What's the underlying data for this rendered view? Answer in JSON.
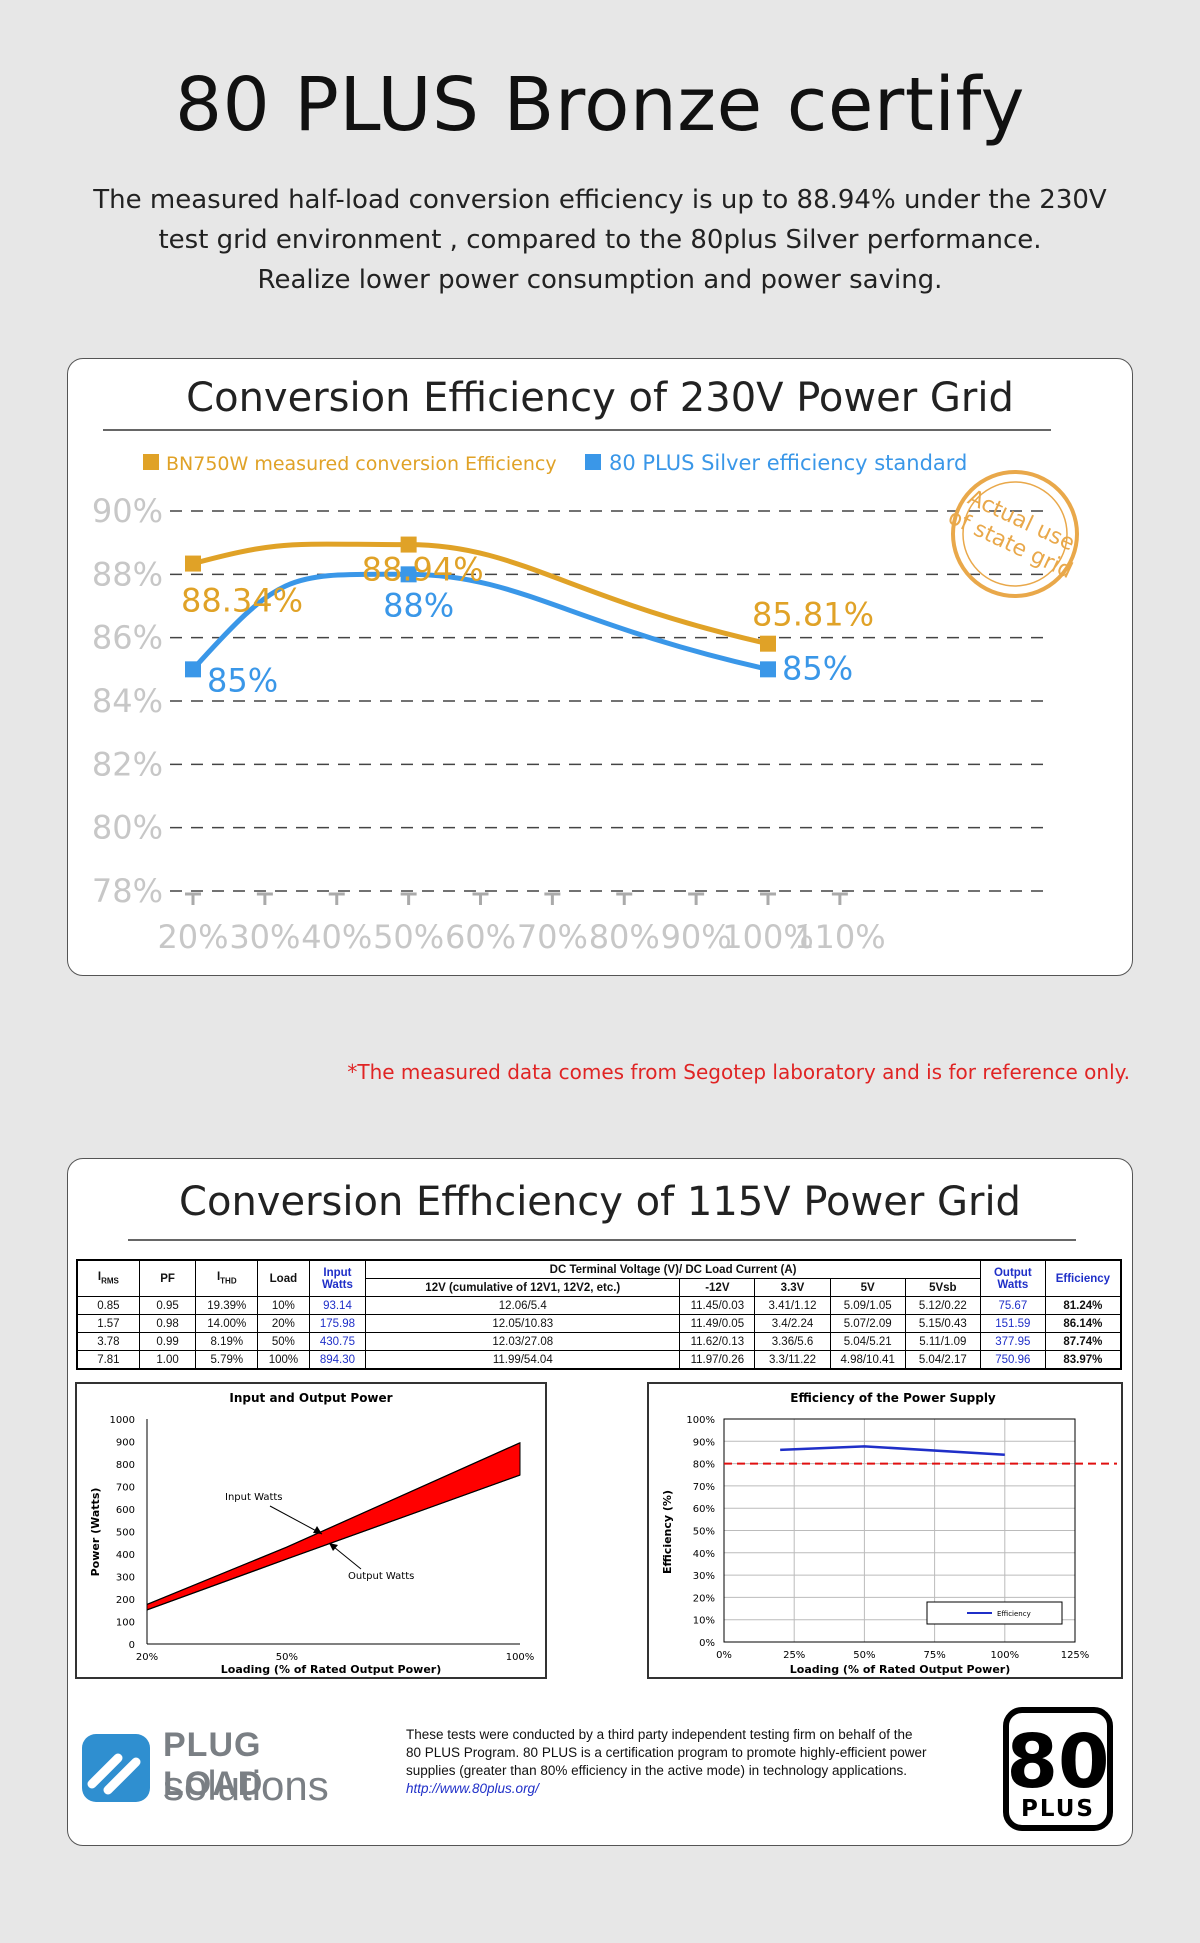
{
  "header": {
    "title": "80 PLUS Bronze certify",
    "subtitle_lines": [
      "The measured half-load conversion efficiency is up to 88.94% under the 230V",
      "test grid environment , compared to the 80plus Silver performance.",
      "Realize lower power consumption and power saving."
    ]
  },
  "chart_230v": {
    "title": "Conversion Efficiency of 230V Power Grid",
    "stamp_text": "Actual use of state grid",
    "colors": {
      "bn750w": "#e0a227",
      "silver": "#3a97e8",
      "axis": "#c7c7c7"
    }
  },
  "footnote": "*The measured data comes from Segotep laboratory and is for reference only.",
  "section_115v": {
    "title": "Conversion Effhciency of 115V Power Grid",
    "table": {
      "headers": [
        "IRMS",
        "PF",
        "ITHD",
        "Load",
        "Input Watts",
        "DC Terminal Voltage (V)/ DC Load Current (A)",
        "Output Watts",
        "Efficiency"
      ],
      "sub_headers": [
        "12V (cumulative of 12V1, 12V2, etc.)",
        "-12V",
        "3.3V",
        "5V",
        "5Vsb"
      ],
      "rows": [
        [
          "0.85",
          "0.95",
          "19.39%",
          "10%",
          "93.14",
          "12.06/5.4",
          "11.45/0.03",
          "3.41/1.12",
          "5.09/1.05",
          "5.12/0.22",
          "75.67",
          "81.24%"
        ],
        [
          "1.57",
          "0.98",
          "14.00%",
          "20%",
          "175.98",
          "12.05/10.83",
          "11.49/0.05",
          "3.4/2.24",
          "5.07/2.09",
          "5.15/0.43",
          "151.59",
          "86.14%"
        ],
        [
          "3.78",
          "0.99",
          "8.19%",
          "50%",
          "430.75",
          "12.03/27.08",
          "11.62/0.13",
          "3.36/5.6",
          "5.04/5.21",
          "5.11/1.09",
          "377.95",
          "87.74%"
        ],
        [
          "7.81",
          "1.00",
          "5.79%",
          "100%",
          "894.30",
          "11.99/54.04",
          "11.97/0.26",
          "3.3/11.22",
          "4.98/10.41",
          "5.04/2.17",
          "750.96",
          "83.97%"
        ]
      ]
    },
    "disclaimer": {
      "lines": [
        "These tests were conducted by a third party independent testing firm on behalf of the",
        "80 PLUS Program. 80 PLUS is a certification program to promote highly-efficient power",
        "supplies (greater than 80% efficiency in the active mode) in technology applications."
      ],
      "link": "http://www.80plus.org/"
    },
    "logos": {
      "plug_load_line1": "PLUG LOAD",
      "plug_load_line2": "solutions",
      "plus_number": "80",
      "plus_word": "PLUS"
    }
  },
  "chart_data": [
    {
      "type": "line",
      "title": "Conversion Efficiency of 230V Power Grid",
      "x": [
        "20%",
        "30%",
        "40%",
        "50%",
        "60%",
        "70%",
        "80%",
        "90%",
        "100%",
        "110%"
      ],
      "y_ticks": [
        "90%",
        "88%",
        "86%",
        "84%",
        "82%",
        "80%",
        "78%"
      ],
      "ylim": [
        78,
        90
      ],
      "grid": true,
      "legend_position": "top",
      "series": [
        {
          "name": "BN750W measured conversion Efficiency",
          "x": [
            20,
            50,
            100
          ],
          "values": [
            88.34,
            88.94,
            85.81
          ],
          "labels": [
            "88.34%",
            "88.94%",
            "85.81%"
          ]
        },
        {
          "name": "80 PLUS Silver efficiency standard",
          "x": [
            20,
            50,
            100
          ],
          "values": [
            85,
            88,
            85
          ],
          "labels": [
            "85%",
            "88%",
            "85%"
          ]
        }
      ]
    },
    {
      "type": "area",
      "title": "Input and Output Power",
      "xlabel": "Loading (% of Rated Output Power)",
      "ylabel": "Power (Watts)",
      "x_ticks": [
        "20%",
        "50%",
        "100%"
      ],
      "y_ticks": [
        "0",
        "100",
        "200",
        "300",
        "400",
        "500",
        "600",
        "700",
        "800",
        "900",
        "1000"
      ],
      "ylim": [
        0,
        1000
      ],
      "annotations": [
        "Input Watts",
        "Output Watts"
      ],
      "series": [
        {
          "name": "Input Watts",
          "x": [
            20,
            50,
            100
          ],
          "values": [
            175.98,
            430.75,
            894.3
          ]
        },
        {
          "name": "Output Watts",
          "x": [
            20,
            50,
            100
          ],
          "values": [
            151.59,
            377.95,
            750.96
          ]
        }
      ]
    },
    {
      "type": "line",
      "title": "Efficiency of the Power Supply",
      "xlabel": "Loading (% of Rated Output Power)",
      "ylabel": "Efficiency (%)",
      "x_ticks": [
        "0%",
        "25%",
        "50%",
        "75%",
        "100%",
        "125%"
      ],
      "y_ticks": [
        "0%",
        "10%",
        "20%",
        "30%",
        "40%",
        "50%",
        "60%",
        "70%",
        "80%",
        "90%",
        "100%"
      ],
      "ylim": [
        0,
        100
      ],
      "xlim": [
        0,
        125
      ],
      "grid": true,
      "legend_position": "bottom-right",
      "reference_line": 80,
      "series": [
        {
          "name": "Efficiency",
          "x": [
            20,
            50,
            100
          ],
          "values": [
            86.14,
            87.74,
            83.97
          ]
        }
      ]
    }
  ]
}
